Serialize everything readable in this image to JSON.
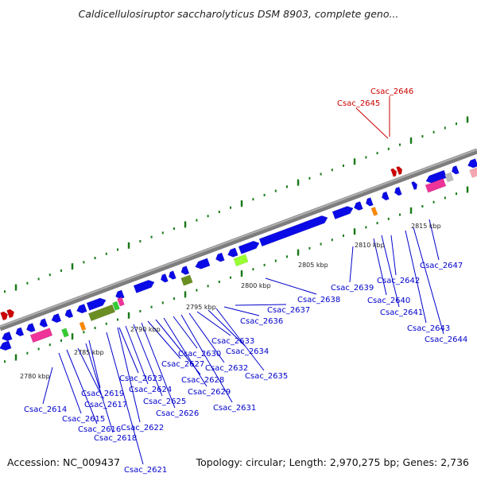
{
  "title": "Caldicellulosiruptor saccharolyticus DSM 8903, complete geno...",
  "footer": {
    "accession": "Accession: NC_009437",
    "topology": "Topology: circular; Length: 2,970,275 bp; Genes: 2,736"
  },
  "scale_labels": [
    "2780 kbp",
    "2785 kbp",
    "2790 kbp",
    "2795 kbp",
    "2800 kbp",
    "2805 kbp",
    "2810 kbp",
    "2815 kbp"
  ],
  "gene_labels": [
    "Csac_2614",
    "Csac_2615",
    "Csac_2616",
    "Csac_2617",
    "Csac_2618",
    "Csac_2619",
    "Csac_2621",
    "Csac_2622",
    "Csac_2623",
    "Csac_2624",
    "Csac_2625",
    "Csac_2626",
    "Csac_2627",
    "Csac_2628",
    "Csac_2629",
    "Csac_2630",
    "Csac_2631",
    "Csac_2632",
    "Csac_2633",
    "Csac_2634",
    "Csac_2635",
    "Csac_2636",
    "Csac_2637",
    "Csac_2638",
    "Csac_2639",
    "Csac_2640",
    "Csac_2641",
    "Csac_2642",
    "Csac_2643",
    "Csac_2644",
    "Csac_2647"
  ],
  "highlighted_labels": [
    "Csac_2645",
    "Csac_2646"
  ],
  "colors": {
    "gene_blue": "#0a0ae6",
    "highlight_red": "#cc0000",
    "backbone": "#888888",
    "tick_green": "#1a7a1a",
    "pink": "#ee3399",
    "olive": "#6b8e23",
    "light_green": "#99ff33",
    "bright_green": "#33cc33",
    "orange": "#ff8800",
    "grey_gene": "#bbbbbb",
    "light_pink": "#f6a6b0",
    "label_blue": "#0000cc"
  }
}
